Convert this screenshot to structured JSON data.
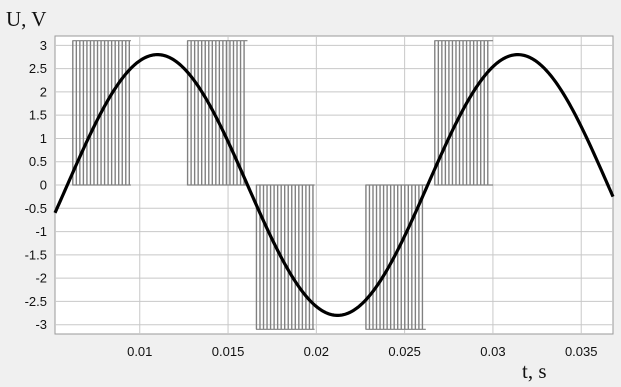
{
  "chart_data": {
    "type": "line",
    "xlabel": "t, s",
    "ylabel": "U, V",
    "xlim": [
      0.0052,
      0.0368
    ],
    "ylim": [
      -3.2,
      3.2
    ],
    "x_ticks": [
      0.01,
      0.015,
      0.02,
      0.025,
      0.03,
      0.035
    ],
    "x_tick_labels": [
      "0.01",
      "0.015",
      "0.02",
      "0.025",
      "0.03",
      "0.035"
    ],
    "y_ticks": [
      3,
      2.5,
      2,
      1.5,
      1,
      0.5,
      0,
      -0.5,
      -1,
      -1.5,
      -2,
      -2.5,
      -3
    ],
    "y_tick_labels": [
      "3",
      "2.5",
      "2",
      "1.5",
      "1",
      "0.5",
      "0",
      "-0.5",
      "-1",
      "-1.5",
      "-2",
      "-2.5",
      "-3"
    ],
    "grid": true,
    "series": [
      {
        "role": "sine",
        "amplitude": 2.8,
        "frequency_hz": 49,
        "peak_times": [
          0.011,
          0.0314
        ],
        "trough_times": [
          0.0211
        ],
        "color": "#000000",
        "x": [
          0.0052,
          0.0079,
          0.011,
          0.0141,
          0.0161,
          0.018,
          0.0211,
          0.0242,
          0.0262,
          0.0283,
          0.0314,
          0.0345,
          0.0368
        ],
        "y": [
          -0.3,
          2.0,
          2.8,
          2.0,
          0.0,
          -1.95,
          -2.8,
          -1.95,
          0.0,
          1.95,
          2.8,
          1.95,
          -0.3
        ]
      },
      {
        "role": "pwm",
        "high_level": 3.1,
        "low_level": -3.1,
        "zero_level": 0,
        "pulse_period_s": 0.0002,
        "color": "#808080",
        "segments": [
          {
            "start": 0.0062,
            "end": 0.0095,
            "polarity": "positive"
          },
          {
            "start": 0.0127,
            "end": 0.0161,
            "polarity": "positive"
          },
          {
            "start": 0.0166,
            "end": 0.0199,
            "polarity": "negative"
          },
          {
            "start": 0.0228,
            "end": 0.0262,
            "polarity": "negative"
          },
          {
            "start": 0.0267,
            "end": 0.03,
            "polarity": "positive"
          }
        ]
      }
    ]
  }
}
